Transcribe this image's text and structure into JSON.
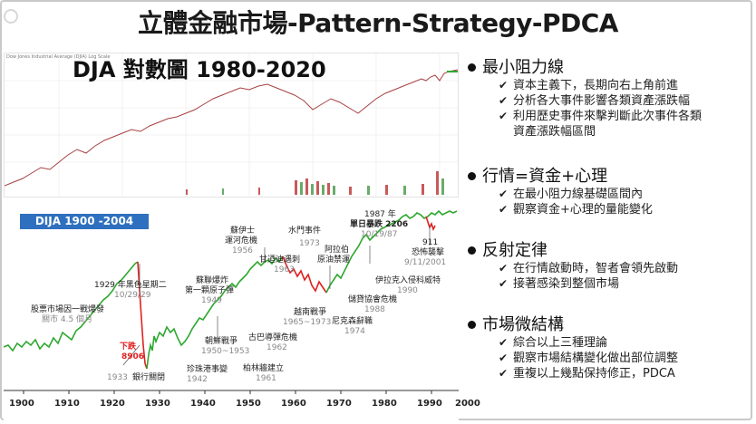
{
  "slide": {
    "title": "立體金融市場-Pattern-Strategy-PDCA"
  },
  "top_chart": {
    "label": "DJA 對數圖 1980-2020",
    "header_text": "Dow Jones Industrial Average (DJIA) Log Scale"
  },
  "bottom_chart": {
    "badge": "DIJA 1900 -2004",
    "annotations": {
      "a1929": "1929 年黑色星期二",
      "a1929d": "10/29/29",
      "a1914": "股票市場因一戰爆發",
      "a1914b": "關市 4.5 個月",
      "a1932": "下跌",
      "a1932b": "8906",
      "a1933": "1933",
      "a1933b": "銀行關閉",
      "a1949": "蘇聯爆炸",
      "a1949b": "第一顆原子彈",
      "a1949d": "1949",
      "a1950": "朝鮮戰爭",
      "a1950d": "1950~1953",
      "a1942": "珍珠港事變",
      "a1942d": "1942",
      "a1956": "蘇伊士",
      "a1956b": "運河危機",
      "a1956d": "1956",
      "a1963": "甘迺迪遇刺",
      "a1963d": "1963",
      "a1962": "古巴導彈危機",
      "a1962d": "1962",
      "a1961": "柏林牆建立",
      "a1961d": "1961",
      "a1973": "水門事件",
      "a1973d": "1973",
      "a1965": "越南戰爭",
      "a1965d": "1965~1973",
      "a1973b": "阿拉伯",
      "a1973c": "原油禁運",
      "a1974": "尼克森辭職",
      "a1974d": "1974",
      "a1987": "1987 年",
      "a1987b": "單日暴跌 2206",
      "a1987d": "10/19/87",
      "a1988": "儲貸協會危機",
      "a1988d": "1988",
      "a1990": "伊拉克入侵科威特",
      "a1990d": "1990",
      "a911": "911",
      "a911b": "恐怖襲擊",
      "a911d": "9/11/2001"
    },
    "years": [
      "1900",
      "1910",
      "1920",
      "1930",
      "1940",
      "1950",
      "1960",
      "1970",
      "1980",
      "1990",
      "2000"
    ]
  },
  "bullets": [
    {
      "heading": "最小阻力線",
      "items": [
        "資本主義下，長期向右上角前進",
        "分析各大事件影響各類資產漲跌幅",
        "利用歷史事件來擊判斷此次事件各類",
        "資產漲跌幅區間"
      ]
    },
    {
      "heading": "行情=資金+心理",
      "items": [
        "在最小阻力線基礎區間內",
        "觀察資金+心理的量能變化"
      ]
    },
    {
      "heading": "反射定律",
      "items": [
        "在行情啟動時，智者會領先啟動",
        "接著感染到整個市場"
      ]
    },
    {
      "heading": "市場微結構",
      "items": [
        "綜合以上三種理論",
        "觀察市場結構變化做出部位調整",
        "重複以上幾點保持修正，PDCA"
      ]
    }
  ],
  "colors": {
    "up": "#2ea82e",
    "down": "#e02020",
    "badge": "#2e6fbf",
    "top_line": "#a64040"
  }
}
